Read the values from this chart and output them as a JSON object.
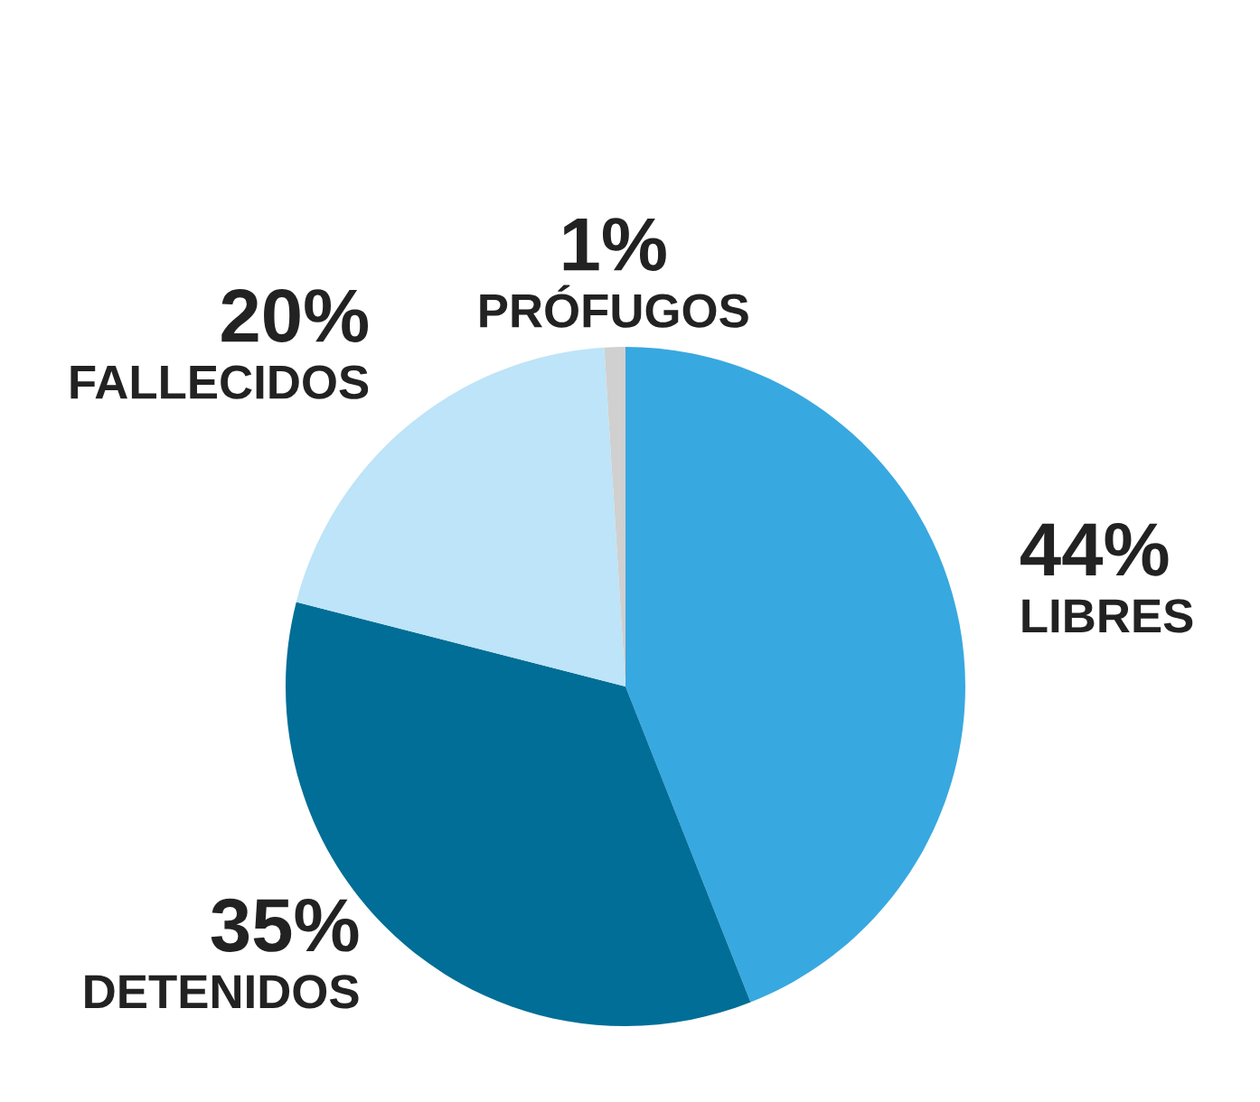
{
  "chart_data": {
    "type": "pie",
    "categories": [
      "LIBRES",
      "DETENIDOS",
      "FALLECIDOS",
      "PRÓFUGOS"
    ],
    "values": [
      44,
      35,
      20,
      1
    ],
    "value_labels": [
      "44%",
      "35%",
      "20%",
      "1%"
    ],
    "colors": [
      "#38a8e0",
      "#006e96",
      "#bde4f8",
      "#d0d0d0"
    ],
    "legend": false
  }
}
